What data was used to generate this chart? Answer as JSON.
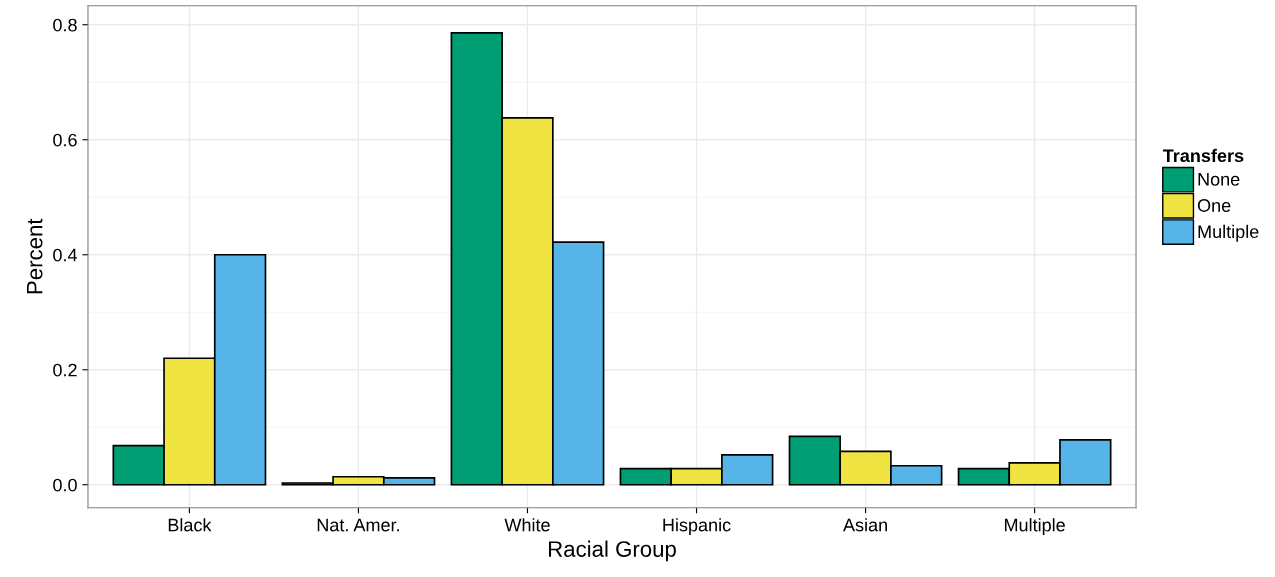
{
  "chart_data": {
    "type": "bar",
    "xlabel": "Racial Group",
    "ylabel": "Percent",
    "legend_title": "Transfers",
    "categories": [
      "Black",
      "Nat. Amer.",
      "White",
      "Hispanic",
      "Asian",
      "Multiple"
    ],
    "series": [
      {
        "name": "None",
        "color": "#009e73",
        "values": [
          0.068,
          0.003,
          0.786,
          0.028,
          0.084,
          0.028
        ]
      },
      {
        "name": "One",
        "color": "#f0e442",
        "values": [
          0.22,
          0.014,
          0.638,
          0.028,
          0.058,
          0.038
        ]
      },
      {
        "name": "Multiple",
        "color": "#56b4e9",
        "values": [
          0.4,
          0.012,
          0.422,
          0.052,
          0.033,
          0.078
        ]
      }
    ],
    "ylim": [
      -0.04,
      0.833
    ],
    "yticks": [
      {
        "value": 0,
        "label": "0.0"
      },
      0.2,
      0.4,
      0.6,
      0.8
    ],
    "grid": true,
    "legend": "right"
  }
}
